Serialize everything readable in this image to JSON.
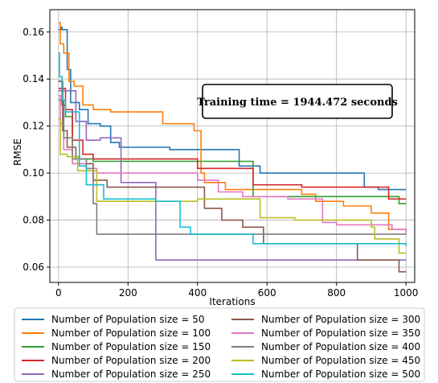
{
  "chart_data": {
    "type": "line",
    "xlabel": "Iterations",
    "ylabel": "RMSE",
    "xlim": [
      -25,
      1025
    ],
    "ylim": [
      0.0535,
      0.1695
    ],
    "x_ticks": [
      0,
      200,
      400,
      600,
      800,
      1000
    ],
    "y_ticks": [
      0.06,
      0.08,
      0.1,
      0.12,
      0.14,
      0.16
    ],
    "x_tick_labels": [
      "0",
      "200",
      "400",
      "600",
      "800",
      "1000"
    ],
    "y_tick_labels": [
      "0.06",
      "0.08",
      "0.10",
      "0.12",
      "0.14",
      "0.16"
    ],
    "grid": true,
    "step": true,
    "legend_position": "below plot, two columns",
    "annotation": "Training time = 1944.472 seconds",
    "series": [
      {
        "name": "Number of Population size = 50",
        "color": "#1f77b4",
        "x": [
          0,
          8,
          10,
          25,
          35,
          60,
          85,
          120,
          150,
          175,
          230,
          320,
          370,
          510,
          520,
          580,
          870,
          880,
          920,
          1000
        ],
        "y": [
          0.161,
          0.162,
          0.161,
          0.144,
          0.13,
          0.127,
          0.121,
          0.12,
          0.113,
          0.111,
          0.111,
          0.11,
          0.11,
          0.11,
          0.103,
          0.1,
          0.1,
          0.094,
          0.093,
          0.093
        ]
      },
      {
        "name": "Number of Population size = 100",
        "color": "#ff7f0e",
        "x": [
          0,
          5,
          15,
          30,
          45,
          70,
          100,
          150,
          200,
          280,
          300,
          390,
          410,
          420,
          480,
          560,
          700,
          740,
          820,
          900,
          950,
          1000
        ],
        "y": [
          0.164,
          0.155,
          0.151,
          0.139,
          0.137,
          0.129,
          0.127,
          0.126,
          0.126,
          0.126,
          0.121,
          0.118,
          0.1,
          0.096,
          0.093,
          0.093,
          0.091,
          0.088,
          0.086,
          0.083,
          0.076,
          0.074
        ]
      },
      {
        "name": "Number of Population size = 150",
        "color": "#2ca02c",
        "x": [
          0,
          10,
          20,
          40,
          60,
          100,
          300,
          500,
          560,
          620,
          980,
          1000
        ],
        "y": [
          0.139,
          0.129,
          0.124,
          0.107,
          0.106,
          0.105,
          0.105,
          0.105,
          0.09,
          0.09,
          0.087,
          0.087
        ]
      },
      {
        "name": "Number of Population size = 200",
        "color": "#d62728",
        "x": [
          0,
          20,
          40,
          70,
          100,
          300,
          320,
          400,
          560,
          700,
          950,
          1000
        ],
        "y": [
          0.136,
          0.127,
          0.114,
          0.108,
          0.106,
          0.106,
          0.106,
          0.102,
          0.095,
          0.094,
          0.089,
          0.089
        ]
      },
      {
        "name": "Number of Population size = 250",
        "color": "#9467bd",
        "x": [
          0,
          30,
          50,
          80,
          120,
          170,
          180,
          200,
          270,
          280,
          400,
          1000
        ],
        "y": [
          0.135,
          0.135,
          0.122,
          0.114,
          0.115,
          0.115,
          0.096,
          0.096,
          0.096,
          0.063,
          0.063,
          0.063
        ]
      },
      {
        "name": "Number of Population size = 300",
        "color": "#8c564b",
        "x": [
          0,
          12,
          25,
          50,
          80,
          100,
          140,
          380,
          420,
          470,
          530,
          590,
          850,
          860,
          980,
          1000
        ],
        "y": [
          0.139,
          0.118,
          0.111,
          0.106,
          0.104,
          0.097,
          0.094,
          0.094,
          0.085,
          0.08,
          0.077,
          0.07,
          0.07,
          0.063,
          0.058,
          0.058
        ]
      },
      {
        "name": "Number of Population size = 350",
        "color": "#e377c2",
        "x": [
          0,
          5,
          15,
          40,
          80,
          110,
          320,
          400,
          460,
          530,
          660,
          760,
          800,
          960,
          1000
        ],
        "y": [
          0.133,
          0.121,
          0.11,
          0.104,
          0.102,
          0.1,
          0.1,
          0.097,
          0.092,
          0.09,
          0.089,
          0.079,
          0.078,
          0.076,
          0.074
        ]
      },
      {
        "name": "Number of Population size = 400",
        "color": "#7f7f7f",
        "x": [
          0,
          15,
          40,
          80,
          100,
          110,
          240,
          400,
          1000
        ],
        "y": [
          0.131,
          0.115,
          0.106,
          0.102,
          0.087,
          0.074,
          0.074,
          0.074,
          0.074
        ]
      },
      {
        "name": "Number of Population size = 450",
        "color": "#bcbd22",
        "x": [
          0,
          5,
          25,
          50,
          55,
          100,
          110,
          300,
          400,
          560,
          580,
          680,
          900,
          910,
          980,
          1000
        ],
        "y": [
          0.123,
          0.108,
          0.107,
          0.107,
          0.101,
          0.101,
          0.088,
          0.088,
          0.089,
          0.089,
          0.081,
          0.08,
          0.077,
          0.072,
          0.066,
          0.066
        ]
      },
      {
        "name": "Number of Population size = 500",
        "color": "#17becf",
        "x": [
          0,
          3,
          10,
          20,
          60,
          80,
          130,
          280,
          350,
          380,
          500,
          550,
          560,
          800,
          1000
        ],
        "y": [
          0.151,
          0.141,
          0.131,
          0.126,
          0.103,
          0.095,
          0.089,
          0.088,
          0.077,
          0.074,
          0.074,
          0.074,
          0.07,
          0.07,
          0.069
        ]
      }
    ]
  }
}
